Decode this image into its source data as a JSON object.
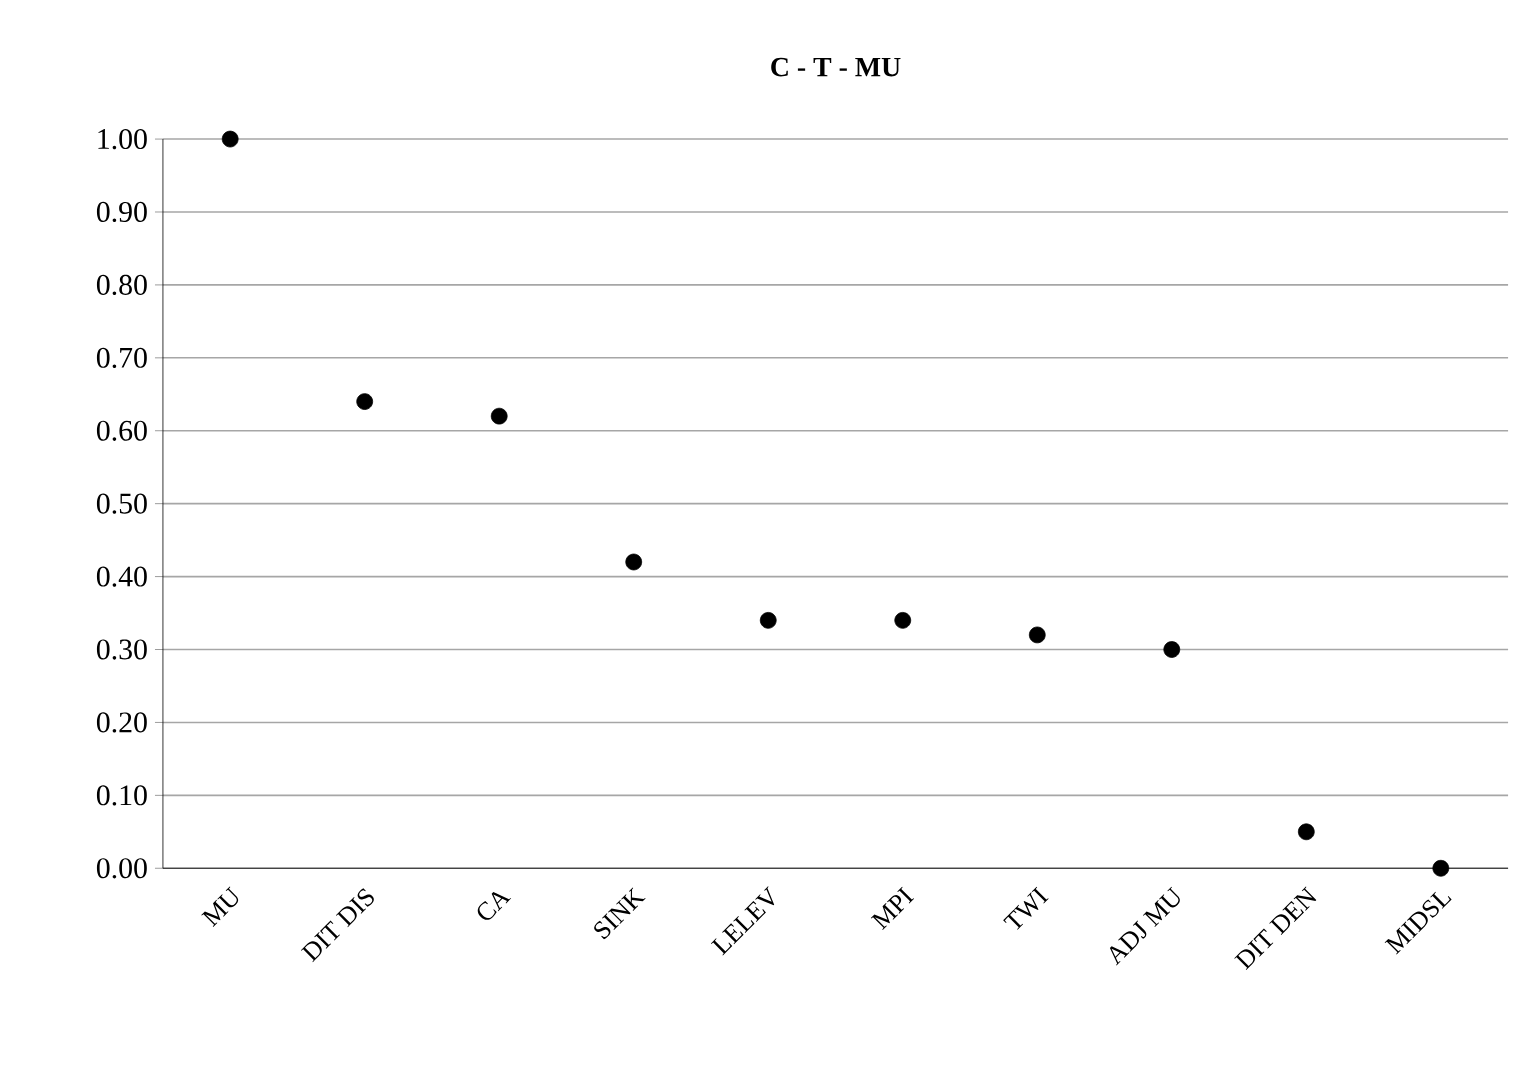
{
  "chart_data": {
    "type": "scatter",
    "title": "C - T - MU",
    "categories": [
      "MU",
      "DIT DIS",
      "CA",
      "SINK",
      "LELEV",
      "MPI",
      "TWI",
      "ADJ MU",
      "DIT DEN",
      "MIDSL"
    ],
    "series": [
      {
        "color": "#000000",
        "values": [
          1.0,
          0.64,
          0.62,
          0.42,
          0.34,
          0.34,
          0.32,
          0.3,
          0.05,
          0.0
        ]
      }
    ],
    "ylim": [
      0,
      1
    ],
    "yticks": [
      {
        "value": 0,
        "label": "0.00"
      },
      {
        "value": 0.1,
        "label": "0.10"
      },
      {
        "value": 0.2,
        "label": "0.20"
      },
      {
        "value": 0.3,
        "label": "0.30"
      },
      {
        "value": 0.4,
        "label": "0.40"
      },
      {
        "value": 0.5,
        "label": "0.50"
      },
      {
        "value": 0.6,
        "label": "0.60"
      },
      {
        "value": 0.7,
        "label": "0.70"
      },
      {
        "value": 0.8,
        "label": "0.80"
      },
      {
        "value": 0.9,
        "label": "0.90"
      },
      {
        "value": 1,
        "label": "1.00"
      }
    ],
    "grid": "y"
  }
}
